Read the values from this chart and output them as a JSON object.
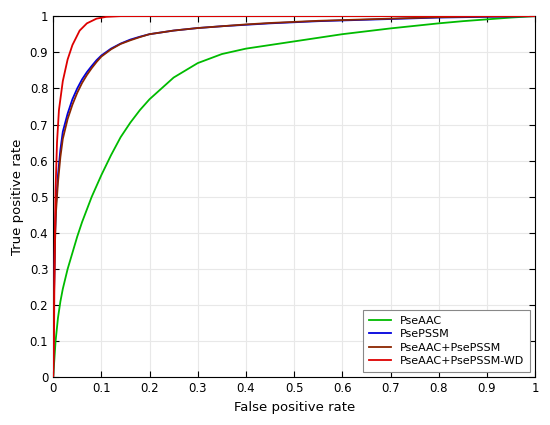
{
  "title": "",
  "xlabel": "False positive rate",
  "ylabel": "True positive rate",
  "xlim": [
    0,
    1
  ],
  "ylim": [
    0,
    1
  ],
  "xticks": [
    0,
    0.1,
    0.2,
    0.3,
    0.4,
    0.5,
    0.6,
    0.7,
    0.8,
    0.9,
    1
  ],
  "yticks": [
    0,
    0.1,
    0.2,
    0.3,
    0.4,
    0.5,
    0.6,
    0.7,
    0.8,
    0.9,
    1
  ],
  "legend_labels": [
    "PseAAC",
    "PsePSSM",
    "PseAAC+PsePSSM",
    "PseAAC+PsePSSM-WD"
  ],
  "colors": {
    "PseAAC": "#00bb00",
    "PsePSSM": "#0000dd",
    "PseAAC+PsePSSM": "#8B2500",
    "PseAAC+PsePSSM-WD": "#dd0000"
  },
  "linewidth": 1.3,
  "background_color": "#ffffff",
  "plot_bg": "#ffffff",
  "legend_loc": "lower right",
  "grid_color": "#e8e8e8",
  "fpr_aac": [
    0.0,
    0.005,
    0.01,
    0.015,
    0.02,
    0.03,
    0.04,
    0.05,
    0.06,
    0.07,
    0.08,
    0.09,
    0.1,
    0.12,
    0.14,
    0.16,
    0.18,
    0.2,
    0.25,
    0.3,
    0.35,
    0.4,
    0.45,
    0.5,
    0.55,
    0.6,
    0.65,
    0.7,
    0.75,
    0.8,
    0.85,
    0.9,
    0.95,
    1.0
  ],
  "tpr_aac": [
    0.0,
    0.1,
    0.165,
    0.21,
    0.245,
    0.3,
    0.345,
    0.39,
    0.43,
    0.465,
    0.5,
    0.53,
    0.56,
    0.615,
    0.665,
    0.705,
    0.74,
    0.77,
    0.83,
    0.87,
    0.895,
    0.91,
    0.92,
    0.93,
    0.94,
    0.95,
    0.958,
    0.966,
    0.973,
    0.98,
    0.986,
    0.991,
    0.996,
    1.0
  ],
  "fpr_pssm": [
    0.0,
    0.002,
    0.004,
    0.006,
    0.01,
    0.015,
    0.02,
    0.03,
    0.04,
    0.05,
    0.06,
    0.07,
    0.08,
    0.09,
    0.1,
    0.12,
    0.14,
    0.16,
    0.18,
    0.2,
    0.25,
    0.3,
    0.35,
    0.4,
    0.45,
    0.5,
    0.55,
    0.6,
    0.65,
    0.7,
    0.75,
    0.8,
    0.85,
    0.9,
    0.95,
    1.0
  ],
  "tpr_pssm": [
    0.0,
    0.25,
    0.4,
    0.48,
    0.56,
    0.63,
    0.68,
    0.73,
    0.77,
    0.8,
    0.825,
    0.845,
    0.862,
    0.878,
    0.891,
    0.91,
    0.924,
    0.935,
    0.943,
    0.95,
    0.96,
    0.967,
    0.972,
    0.976,
    0.98,
    0.983,
    0.986,
    0.988,
    0.99,
    0.992,
    0.994,
    0.996,
    0.997,
    0.998,
    0.999,
    1.0
  ],
  "fpr_combo": [
    0.0,
    0.002,
    0.004,
    0.006,
    0.01,
    0.015,
    0.02,
    0.03,
    0.04,
    0.05,
    0.06,
    0.07,
    0.08,
    0.09,
    0.1,
    0.12,
    0.14,
    0.16,
    0.18,
    0.2,
    0.25,
    0.3,
    0.35,
    0.4,
    0.45,
    0.5,
    0.55,
    0.6,
    0.65,
    0.7,
    0.75,
    0.8,
    0.85,
    0.9,
    0.95,
    1.0
  ],
  "tpr_combo": [
    0.0,
    0.24,
    0.38,
    0.46,
    0.54,
    0.61,
    0.66,
    0.715,
    0.755,
    0.788,
    0.815,
    0.837,
    0.856,
    0.873,
    0.888,
    0.908,
    0.923,
    0.933,
    0.942,
    0.95,
    0.96,
    0.967,
    0.972,
    0.977,
    0.981,
    0.984,
    0.987,
    0.989,
    0.991,
    0.993,
    0.995,
    0.997,
    0.998,
    0.999,
    0.9995,
    1.0
  ],
  "fpr_wd": [
    0.0,
    0.001,
    0.002,
    0.003,
    0.005,
    0.008,
    0.012,
    0.02,
    0.03,
    0.04,
    0.055,
    0.07,
    0.09,
    0.11,
    0.14,
    0.18,
    0.25,
    0.35,
    0.5,
    0.7,
    0.9,
    1.0
  ],
  "tpr_wd": [
    0.0,
    0.05,
    0.15,
    0.35,
    0.52,
    0.65,
    0.74,
    0.82,
    0.88,
    0.92,
    0.96,
    0.98,
    0.993,
    0.998,
    1.0,
    1.0,
    1.0,
    1.0,
    1.0,
    1.0,
    1.0,
    1.0
  ]
}
